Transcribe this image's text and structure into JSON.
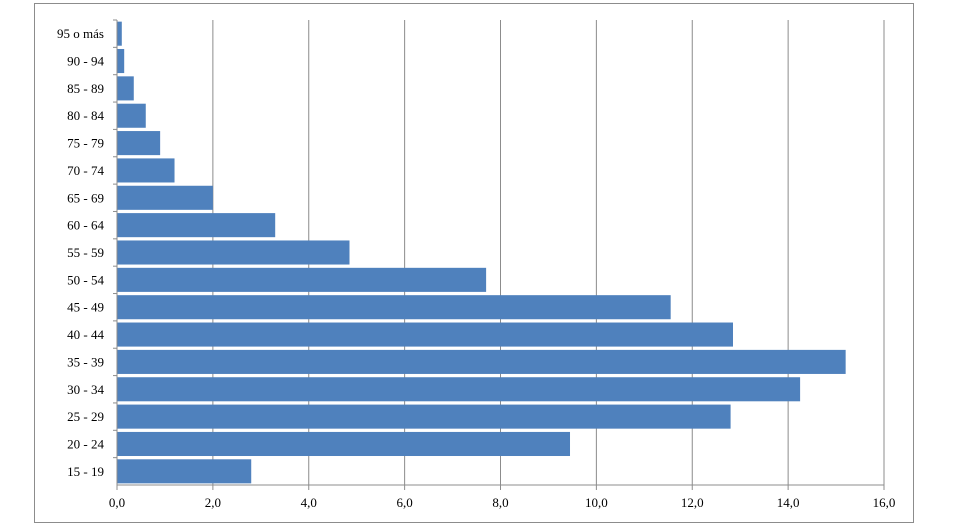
{
  "chart_data": {
    "type": "bar",
    "orientation": "horizontal",
    "title": "",
    "xlabel": "",
    "ylabel": "",
    "categories": [
      "95 o más",
      "90 - 94",
      "85 - 89",
      "80 - 84",
      "75 - 79",
      "70 - 74",
      "65 - 69",
      "60 - 64",
      "55 - 59",
      "50 - 54",
      "45 - 49",
      "40 - 44",
      "35 - 39",
      "30 - 34",
      "25 - 29",
      "20 - 24",
      "15 - 19"
    ],
    "values": [
      0.1,
      0.15,
      0.35,
      0.6,
      0.9,
      1.2,
      2.0,
      3.3,
      4.85,
      7.7,
      11.55,
      12.85,
      15.2,
      14.25,
      12.8,
      9.45,
      2.8
    ],
    "xlim": [
      0,
      16
    ],
    "xticks": [
      "0,0",
      "2,0",
      "4,0",
      "6,0",
      "8,0",
      "10,0",
      "12,0",
      "14,0",
      "16,0"
    ],
    "grid": "vertical",
    "legend": "none",
    "bar_color": "#4f81bd"
  }
}
